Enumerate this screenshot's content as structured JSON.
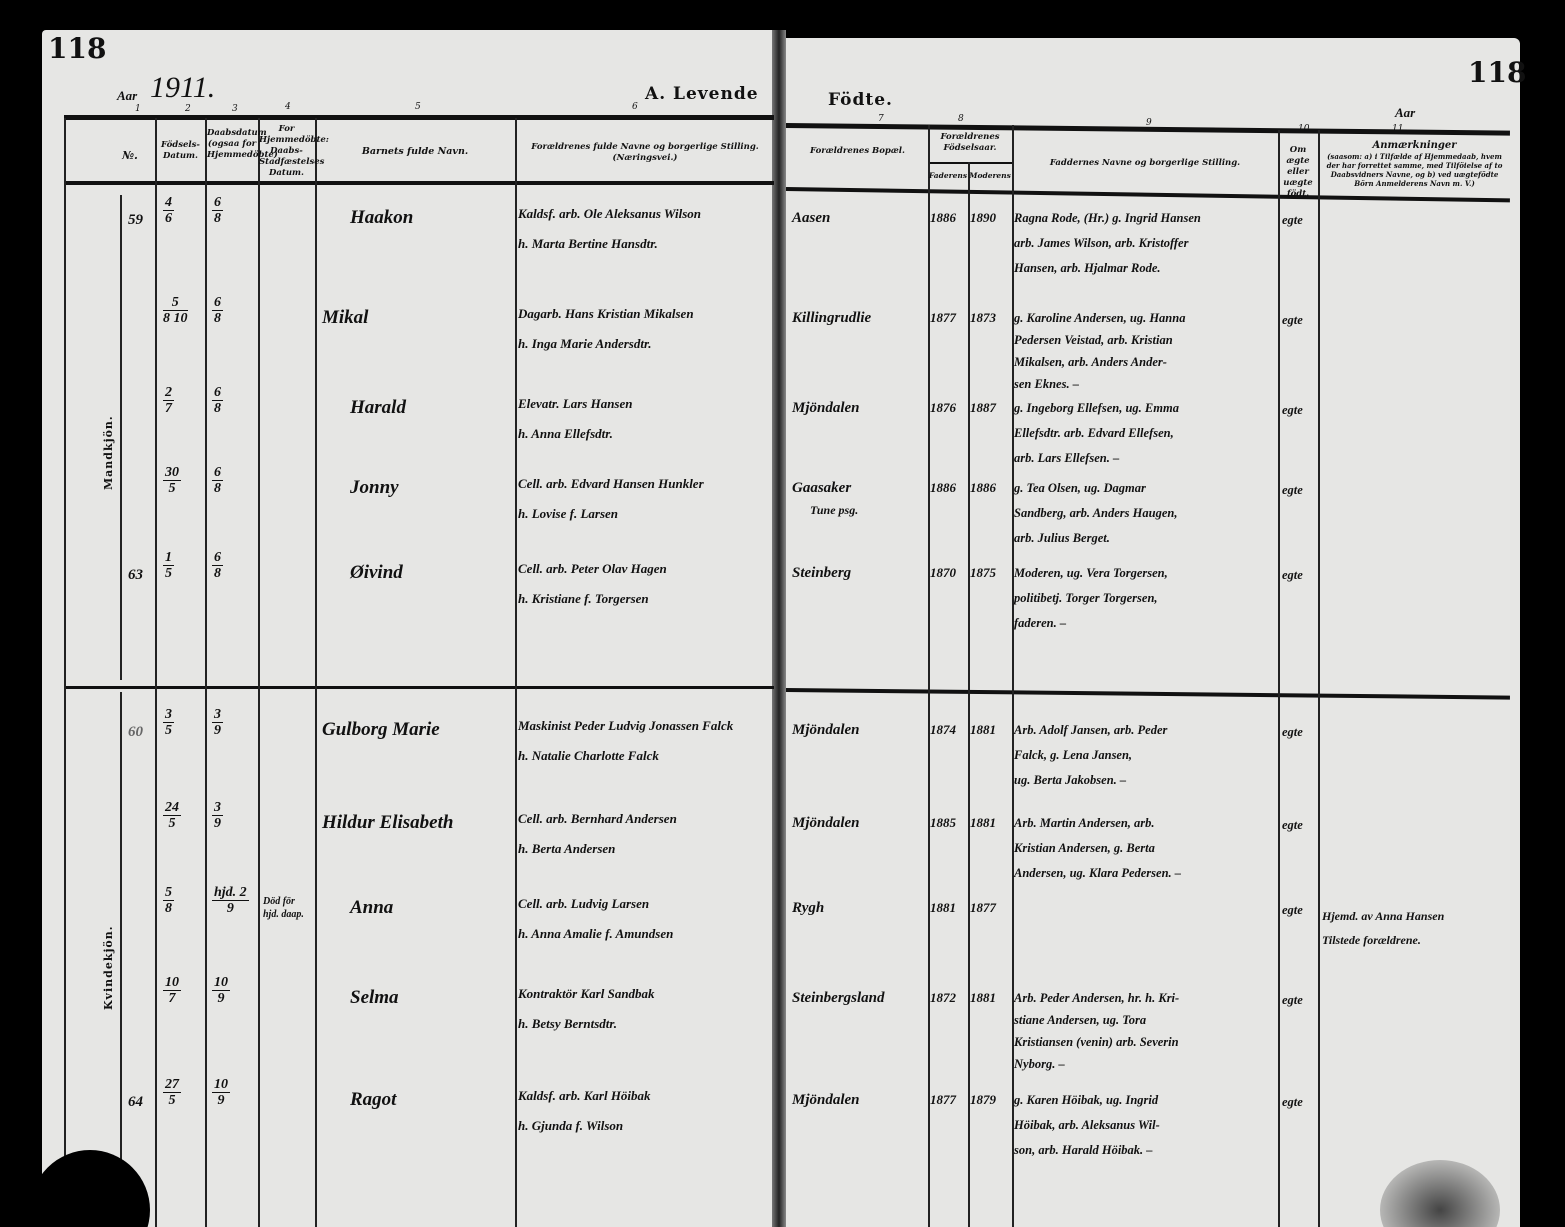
{
  "page_number_left": "118",
  "page_number_right": "118",
  "year_label": "Aar",
  "year": "1911.",
  "year_label_right": "Aar",
  "title_left": "A. Levende",
  "title_right": "Födte.",
  "column_numbers": [
    "1",
    "2",
    "3",
    "4",
    "5",
    "6",
    "7",
    "8",
    "9",
    "10",
    "11"
  ],
  "headers": {
    "no": "№.",
    "birth_date": "Födsels-Datum.",
    "baptism_date": "Daabsdatum (ogsaa for Hjemmedöbte)",
    "home_baptism": "For Hjemmedöbte: Daabs-Stadfæstelses Datum.",
    "child_name": "Barnets fulde Navn.",
    "parents": "Forældrenes fulde Navne og borgerlige Stilling.",
    "parents_sub": "(Næringsvei.)",
    "residence": "Forældrenes Bopæl.",
    "birth_years": "Forældrenes Födselsaar.",
    "father": "Faderens",
    "mother": "Moderens",
    "sponsors": "Faddernes Navne og borgerlige Stilling.",
    "legitimate": "Om ægte eller uægte födt.",
    "remarks": "Anmærkninger",
    "remarks_sub": "(saasom: a) i Tilfælde af Hjemmedaab, hvem der har forrettet samme, med Tilföielse af to Daabsvidners Navne, og b) ved uægtefödte Börn Anmelderens Navn m. V.)"
  },
  "sections": {
    "male": "Mandkjön.",
    "female": "Kvindekjön."
  },
  "entries": [
    {
      "no": "59",
      "birth": [
        "4",
        "6"
      ],
      "baptism": [
        "6",
        "8"
      ],
      "home_baptism": "",
      "child": "Haakon",
      "parents": [
        "Kaldsf. arb. Ole Aleksanus Wilson",
        "h. Marta Bertine Hansdtr."
      ],
      "residence": [
        "Aasen"
      ],
      "father_year": "1886",
      "mother_year": "1890",
      "sponsors": [
        "Ragna Rode, (Hr.) g. Ingrid Hansen",
        "arb. James Wilson, arb. Kristoffer",
        "Hansen, arb. Hjalmar Rode."
      ],
      "legit": "egte",
      "remarks": []
    },
    {
      "no": "",
      "birth": [
        "5",
        "8 10"
      ],
      "baptism": [
        "6",
        "8"
      ],
      "home_baptism": "",
      "child": "Mikal",
      "parents": [
        "Dagarb. Hans Kristian Mikalsen",
        "h. Inga Marie Andersdtr."
      ],
      "residence": [
        "Killingrudlie"
      ],
      "father_year": "1877",
      "mother_year": "1873",
      "sponsors": [
        "g. Karoline Andersen, ug. Hanna",
        "Pedersen Veistad, arb. Kristian",
        "Mikalsen, arb. Anders Ander-",
        "sen Eknes. –"
      ],
      "legit": "egte",
      "remarks": []
    },
    {
      "no": "",
      "birth": [
        "2",
        "7"
      ],
      "baptism": [
        "6",
        "8"
      ],
      "home_baptism": "",
      "child": "Harald",
      "parents": [
        "Elevatr. Lars Hansen",
        "h. Anna Ellefsdtr."
      ],
      "residence": [
        "Mjöndalen"
      ],
      "father_year": "1876",
      "mother_year": "1887",
      "sponsors": [
        "g. Ingeborg Ellefsen, ug. Emma",
        "Ellefsdtr. arb. Edvard Ellefsen,",
        "arb. Lars Ellefsen. –"
      ],
      "legit": "egte",
      "remarks": []
    },
    {
      "no": "",
      "birth": [
        "30",
        "5"
      ],
      "baptism": [
        "6",
        "8"
      ],
      "home_baptism": "",
      "child": "Jonny",
      "parents": [
        "Cell. arb. Edvard Hansen Hunkler",
        "h. Lovise f. Larsen"
      ],
      "residence": [
        "Gaasaker",
        "Tune psg."
      ],
      "father_year": "1886",
      "mother_year": "1886",
      "sponsors": [
        "g. Tea Olsen, ug. Dagmar",
        "Sandberg, arb. Anders Haugen,",
        "arb. Julius Berget."
      ],
      "legit": "egte",
      "remarks": []
    },
    {
      "no": "63",
      "birth": [
        "1",
        "5"
      ],
      "baptism": [
        "6",
        "8"
      ],
      "home_baptism": "",
      "child": "Øivind",
      "parents": [
        "Cell. arb. Peter Olav Hagen",
        "h. Kristiane f. Torgersen"
      ],
      "residence": [
        "Steinberg"
      ],
      "father_year": "1870",
      "mother_year": "1875",
      "sponsors": [
        "Moderen, ug. Vera Torgersen,",
        "politibetj. Torger Torgersen,",
        "faderen. –"
      ],
      "legit": "egte",
      "remarks": []
    },
    {
      "no": "60",
      "birth": [
        "3",
        "5"
      ],
      "baptism": [
        "3",
        "9"
      ],
      "home_baptism": "",
      "child": "Gulborg Marie",
      "parents": [
        "Maskinist Peder Ludvig Jonassen Falck",
        "h. Natalie Charlotte Falck"
      ],
      "residence": [
        "Mjöndalen"
      ],
      "father_year": "1874",
      "mother_year": "1881",
      "sponsors": [
        "Arb. Adolf Jansen, arb. Peder",
        "Falck, g. Lena Jansen,",
        "ug. Berta Jakobsen. –"
      ],
      "legit": "egte",
      "remarks": []
    },
    {
      "no": "",
      "birth": [
        "24",
        "5"
      ],
      "baptism": [
        "3",
        "9"
      ],
      "home_baptism": "",
      "child": "Hildur Elisabeth",
      "parents": [
        "Cell. arb. Bernhard Andersen",
        "h. Berta Andersen"
      ],
      "residence": [
        "Mjöndalen"
      ],
      "father_year": "1885",
      "mother_year": "1881",
      "sponsors": [
        "Arb. Martin Andersen, arb.",
        "Kristian Andersen, g. Berta",
        "Andersen, ug. Klara Pedersen. –"
      ],
      "legit": "egte",
      "remarks": []
    },
    {
      "no": "",
      "birth": [
        "5",
        "8"
      ],
      "baptism": [
        "hjd. 2",
        "9"
      ],
      "home_baptism": "Död för hjd. daap.",
      "child": "Anna",
      "parents": [
        "Cell. arb. Ludvig Larsen",
        "h. Anna Amalie f. Amundsen"
      ],
      "residence": [
        "Rygh"
      ],
      "father_year": "1881",
      "mother_year": "1877",
      "sponsors": [],
      "legit": "egte",
      "remarks": [
        "Hjemd. av Anna Hansen",
        "Tilstede forældrene."
      ]
    },
    {
      "no": "",
      "birth": [
        "10",
        "7"
      ],
      "baptism": [
        "10",
        "9"
      ],
      "home_baptism": "",
      "child": "Selma",
      "parents": [
        "Kontraktör Karl Sandbak",
        "h. Betsy Berntsdtr."
      ],
      "residence": [
        "Steinbergsland"
      ],
      "father_year": "1872",
      "mother_year": "1881",
      "sponsors": [
        "Arb. Peder Andersen, hr. h. Kri-",
        "stiane Andersen, ug. Tora",
        "Kristiansen (venin) arb. Severin",
        "Nyborg. –"
      ],
      "legit": "egte",
      "remarks": []
    },
    {
      "no": "64",
      "birth": [
        "27",
        "5"
      ],
      "baptism": [
        "10",
        "9"
      ],
      "home_baptism": "",
      "child": "Ragot",
      "parents": [
        "Kaldsf. arb. Karl Höibak",
        "h. Gjunda f. Wilson"
      ],
      "residence": [
        "Mjöndalen"
      ],
      "father_year": "1877",
      "mother_year": "1879",
      "sponsors": [
        "g. Karen Höibak, ug. Ingrid",
        "Höibak, arb. Aleksanus Wil-",
        "son, arb. Harald Höibak. –"
      ],
      "legit": "egte",
      "remarks": []
    }
  ]
}
